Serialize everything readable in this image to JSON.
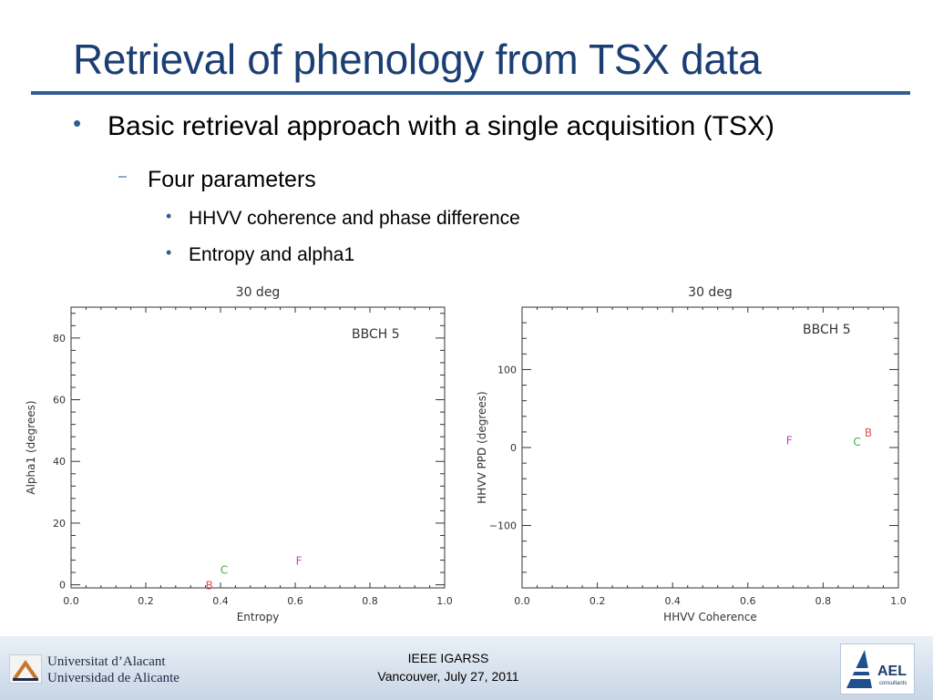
{
  "slide": {
    "title": "Retrieval of phenology from TSX data",
    "bullets": {
      "level1": "Basic retrieval approach with a single acquisition (TSX)",
      "level2": "Four parameters",
      "level3": [
        "HHVV coherence and phase difference",
        "Entropy and alpha1"
      ],
      "level1_marker": "•",
      "level2_marker": "–",
      "level3_marker": "•"
    }
  },
  "footer": {
    "university": [
      "Universitat d’Alacant",
      "Universidad de Alicante"
    ],
    "conference": "IEEE IGARSS",
    "venue_date": "Vancouver, July 27, 2011",
    "partner_logo_text": "AEL",
    "partner_logo_subtext": "consultants"
  },
  "colors": {
    "title": "#1b3f73",
    "rule": "#2f5e93",
    "label_B": "#e05050",
    "label_C": "#40b040",
    "label_F": "#c040c0"
  },
  "chart_data": [
    {
      "type": "scatter",
      "title": "30 deg",
      "annotation": "BBCH   5",
      "xlabel": "Entropy",
      "ylabel": "Alpha1 (degrees)",
      "xlim": [
        0.0,
        1.0
      ],
      "ylim": [
        -1,
        90
      ],
      "xticks": [
        0.0,
        0.2,
        0.4,
        0.6,
        0.8,
        1.0
      ],
      "xtick_labels": [
        "0.0",
        "0.2",
        "0.4",
        "0.6",
        "0.8",
        "1.0"
      ],
      "yticks": [
        0,
        20,
        40,
        60,
        80
      ],
      "ytick_labels": [
        "0",
        "20",
        "40",
        "60",
        "80"
      ],
      "grid": false,
      "points": [
        {
          "label": "B",
          "x": 0.37,
          "y": 0
        },
        {
          "label": "C",
          "x": 0.41,
          "y": 5
        },
        {
          "label": "F",
          "x": 0.61,
          "y": 8
        }
      ]
    },
    {
      "type": "scatter",
      "title": "30 deg",
      "annotation": "BBCH   5",
      "xlabel": "HHVV Coherence",
      "ylabel": "HHVV PPD (degrees)",
      "xlim": [
        0.0,
        1.0
      ],
      "ylim": [
        -180,
        180
      ],
      "xticks": [
        0.0,
        0.2,
        0.4,
        0.6,
        0.8,
        1.0
      ],
      "xtick_labels": [
        "0.0",
        "0.2",
        "0.4",
        "0.6",
        "0.8",
        "1.0"
      ],
      "yticks": [
        -100,
        0,
        100
      ],
      "ytick_labels": [
        "−100",
        "0",
        "100"
      ],
      "grid": false,
      "points": [
        {
          "label": "F",
          "x": 0.71,
          "y": 10
        },
        {
          "label": "C",
          "x": 0.89,
          "y": 8
        },
        {
          "label": "B",
          "x": 0.92,
          "y": 20
        }
      ]
    }
  ]
}
